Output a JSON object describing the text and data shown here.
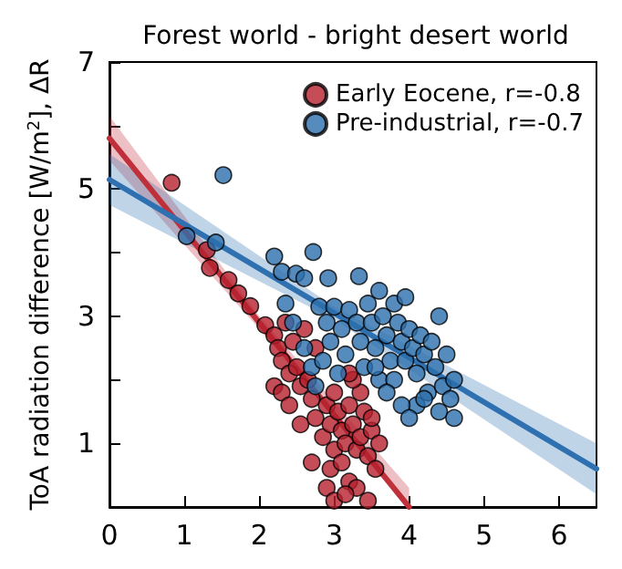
{
  "chart_data": {
    "type": "scatter",
    "title": "Forest world - bright desert world",
    "ylabel": "ToA radiation difference [W/m$^{2}$], ΔR",
    "xlim": [
      0,
      6.5
    ],
    "xticks": [
      0,
      1,
      2,
      3,
      4,
      5,
      6
    ],
    "ylim": [
      0,
      7
    ],
    "yticks": [
      {
        "value": 0,
        "label": null
      },
      1,
      {
        "value": 2,
        "label": null
      },
      3,
      {
        "value": 4,
        "label": null
      },
      5,
      {
        "value": 6,
        "label": null
      },
      7
    ],
    "legend": "top right",
    "grid": false,
    "marker": "circle",
    "series": [
      {
        "name": "Early Eocene, r=-0.8",
        "color": "#b5202e",
        "x": [
          0.83,
          1.3,
          1.34,
          1.59,
          1.72,
          1.88,
          2.08,
          2.2,
          2.25,
          2.3,
          2.35,
          2.4,
          2.2,
          2.3,
          2.45,
          2.5,
          2.55,
          2.4,
          2.65,
          2.7,
          2.55,
          2.75,
          2.9,
          2.75,
          2.85,
          2.95,
          3.0,
          3.05,
          3.1,
          3.0,
          2.95,
          3.15,
          3.2,
          3.25,
          3.3,
          3.1,
          3.2,
          3.35,
          3.4,
          3.45,
          3.5,
          3.55,
          3.6,
          3.35,
          3.25,
          3.3,
          3.45,
          2.9,
          3.0,
          2.7,
          3.5,
          3.2,
          2.6,
          3.15
        ],
        "values": [
          5.1,
          4.04,
          3.76,
          3.57,
          3.36,
          3.16,
          2.86,
          2.7,
          2.5,
          2.3,
          2.9,
          2.1,
          1.9,
          1.8,
          2.6,
          2.2,
          1.9,
          1.6,
          2.0,
          1.7,
          1.3,
          2.5,
          1.6,
          1.4,
          1.1,
          1.3,
          1.8,
          1.5,
          1.2,
          0.9,
          0.6,
          1.0,
          1.6,
          1.3,
          0.9,
          0.7,
          0.4,
          1.1,
          1.5,
          0.8,
          1.2,
          0.6,
          1.0,
          1.8,
          2.0,
          0.3,
          0.1,
          0.3,
          0.1,
          0.7,
          1.4,
          2.1,
          2.8,
          0.2
        ]
      },
      {
        "name": "Pre-industrial, r=-0.7",
        "color": "#2c6fad",
        "x": [
          1.03,
          1.42,
          1.52,
          2.2,
          2.3,
          2.49,
          2.72,
          2.6,
          2.92,
          3.33,
          2.35,
          2.45,
          2.6,
          2.7,
          2.8,
          2.9,
          2.95,
          2.85,
          3.0,
          3.1,
          3.15,
          3.2,
          3.3,
          3.35,
          3.4,
          3.45,
          3.5,
          3.55,
          3.6,
          3.6,
          3.65,
          3.7,
          3.75,
          3.8,
          3.8,
          3.85,
          3.9,
          3.95,
          3.95,
          4.0,
          4.05,
          4.1,
          4.1,
          4.15,
          4.2,
          4.25,
          4.3,
          4.35,
          4.4,
          4.4,
          4.45,
          4.5,
          4.55,
          4.6,
          4.6,
          3.9,
          4.0,
          4.2,
          3.7,
          3.55,
          2.75,
          3.05
        ],
        "values": [
          4.26,
          4.16,
          5.22,
          3.94,
          3.7,
          3.67,
          4.01,
          3.6,
          3.6,
          3.63,
          3.2,
          2.9,
          2.5,
          2.2,
          3.15,
          2.9,
          2.6,
          2.3,
          3.15,
          2.8,
          2.4,
          3.1,
          2.9,
          2.6,
          2.2,
          3.2,
          2.9,
          2.5,
          2.0,
          3.4,
          3.0,
          2.7,
          2.3,
          2.0,
          3.2,
          2.9,
          2.6,
          2.3,
          3.3,
          2.8,
          2.5,
          2.1,
          1.6,
          2.7,
          2.4,
          1.8,
          2.6,
          2.2,
          3.0,
          1.5,
          1.9,
          2.4,
          1.7,
          1.4,
          2.0,
          1.6,
          1.4,
          1.7,
          1.8,
          2.2,
          1.9,
          2.1
        ]
      },
      {
        "type": "line",
        "marker": "none",
        "color": "#c0303a",
        "x": [
          0,
          2,
          4
        ],
        "values": [
          5.8,
          2.9,
          0.0
        ],
        "lower": [
          5.45,
          2.8,
          0.0
        ],
        "upper": [
          6.15,
          3.0,
          0.3
        ]
      },
      {
        "type": "line",
        "marker": "none",
        "color": "#2f70b0",
        "x": [
          0,
          3,
          6.5
        ],
        "values": [
          5.15,
          3.05,
          0.6
        ],
        "lower": [
          4.75,
          2.95,
          0.2
        ],
        "upper": [
          5.55,
          3.15,
          1.0
        ]
      }
    ]
  }
}
